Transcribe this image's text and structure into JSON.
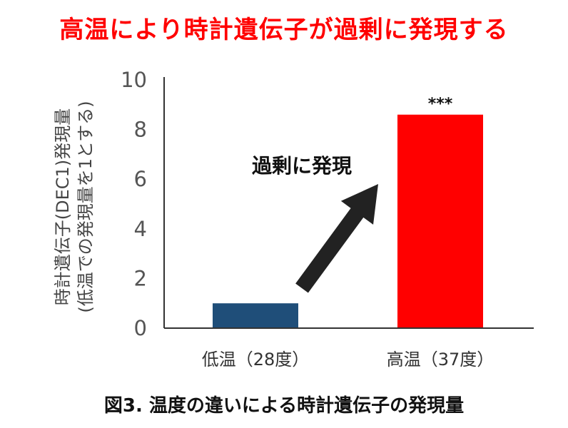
{
  "chart_data": {
    "type": "bar",
    "title": "高温により時計遺伝子が過剰に発現する",
    "ylabel_line1": "時計遺伝子(DEC1)発現量",
    "ylabel_line2": "(低温での発現量を1とする)",
    "categories": [
      "低温（28度）",
      "高温（37度）"
    ],
    "values": [
      1.0,
      8.6
    ],
    "bar_colors": [
      "#1f4e79",
      "#ff0000"
    ],
    "ylim": [
      0,
      10
    ],
    "yticks": [
      0,
      2,
      4,
      6,
      8,
      10
    ],
    "grid": false,
    "annotations": {
      "arrow_text": "過剰に発現",
      "significance": "***"
    },
    "caption": "図3. 温度の違いによる時計遺伝子の発現量"
  }
}
